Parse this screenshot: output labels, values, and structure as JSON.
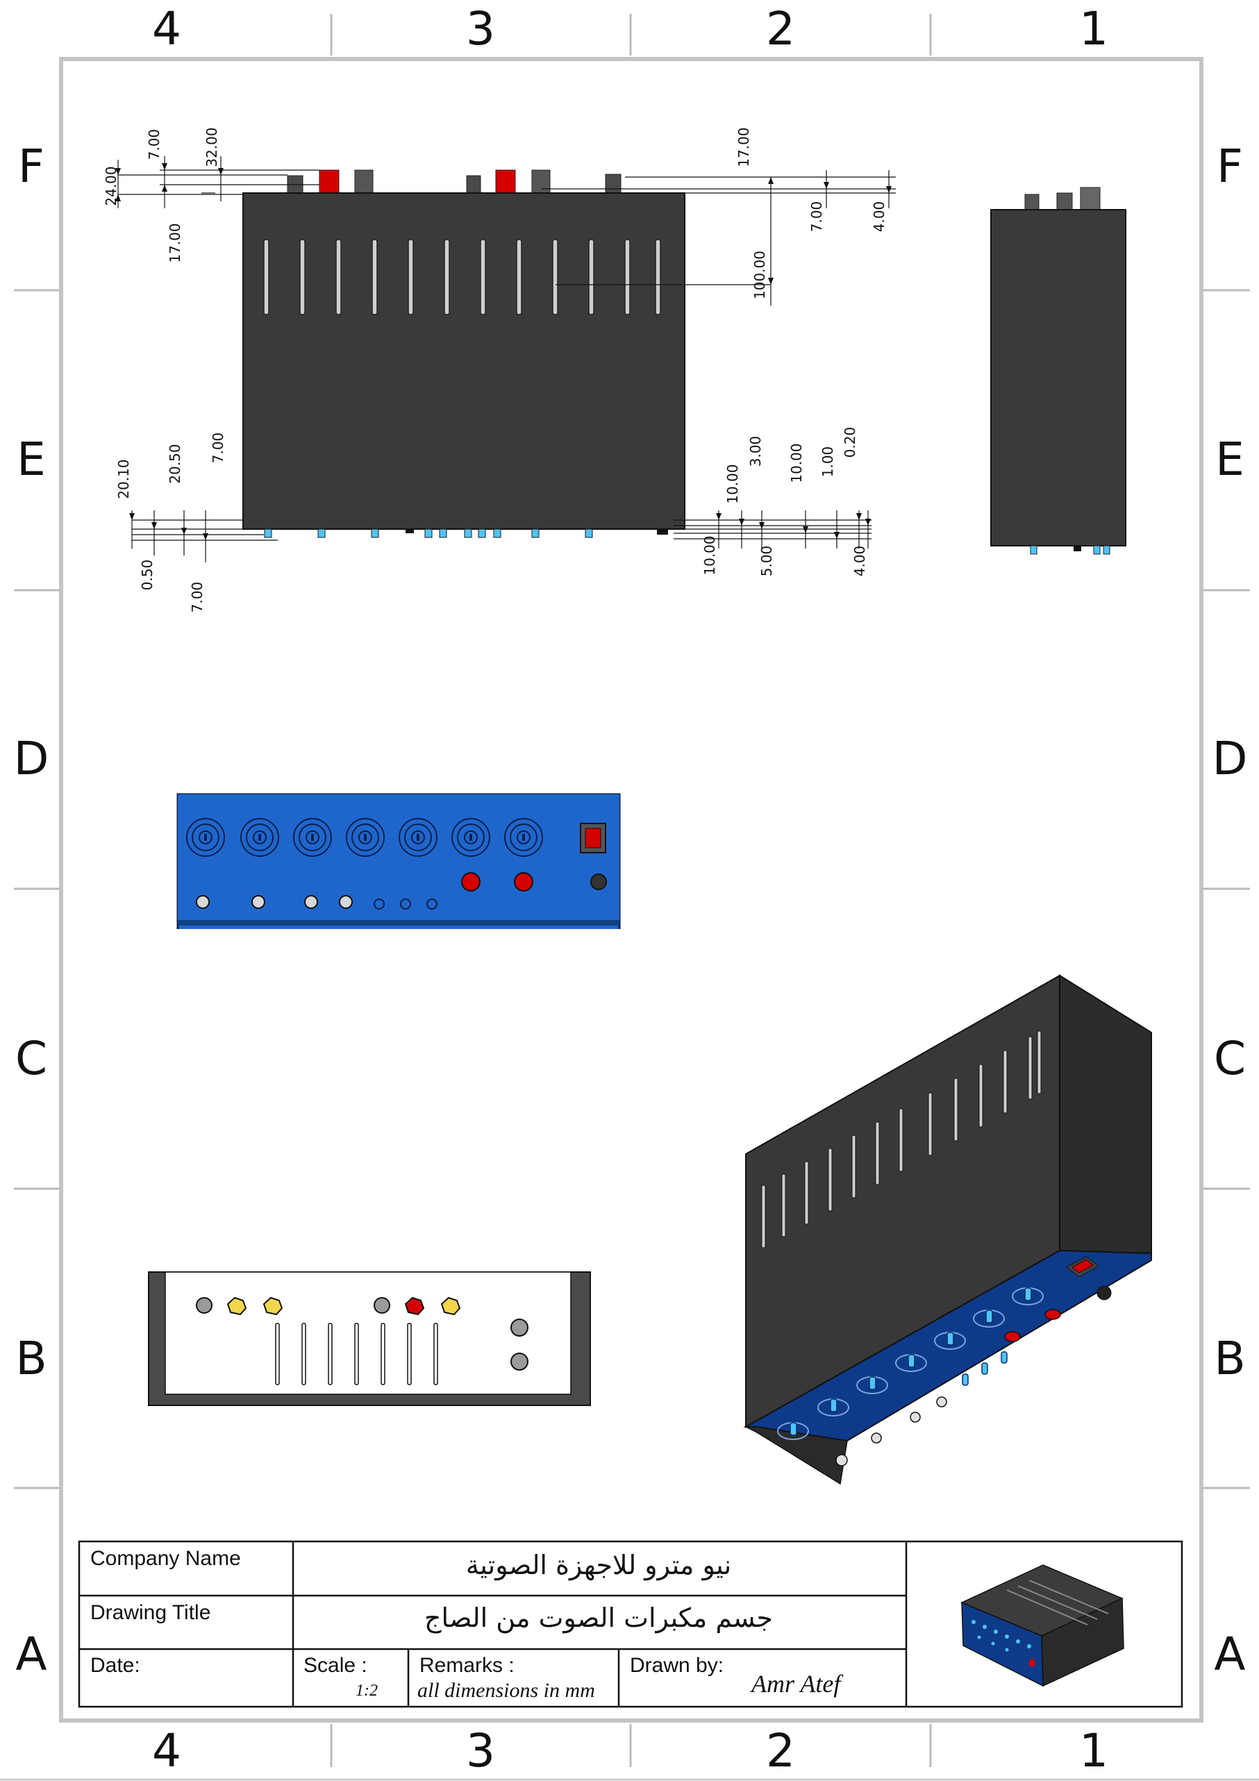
{
  "sheet": {
    "columns": [
      "4",
      "3",
      "2",
      "1"
    ],
    "rows": [
      "F",
      "E",
      "D",
      "C",
      "B",
      "A"
    ]
  },
  "top_view": {
    "dims_left_top": [
      "24.00",
      "7.00",
      "17.00",
      "32.00"
    ],
    "dims_right_top": [
      "17.00",
      "100.00",
      "7.00",
      "4.00"
    ],
    "dims_left_bottom": [
      "20.10",
      "0.50",
      "20.50",
      "7.00",
      "7.00"
    ],
    "dims_right_bottom": [
      "10.00",
      "10.00",
      "3.00",
      "5.00",
      "10.00",
      "1.00",
      "4.00",
      "0.20"
    ]
  },
  "title_block": {
    "company_label": "Company Name",
    "company_value": "نيو مترو للاجهزة الصوتية",
    "title_label": "Drawing Title",
    "title_value": "جسم مكبرات الصوت من الصاج",
    "date_label": "Date:",
    "scale_label": "Scale :",
    "scale_value": "1:2",
    "remarks_label": "Remarks :",
    "remarks_value": "all dimensions in mm",
    "drawn_label": "Drawn by:",
    "drawn_value": "Amr Atef"
  },
  "colors": {
    "body": "#3a3a3a",
    "panel_blue": "#1f66cc",
    "iso_panel": "#0e3a8a",
    "red": "#d40000",
    "cyan": "#4fc3f7",
    "yellow": "#f2d64b",
    "frame": "#bfbfbf"
  }
}
